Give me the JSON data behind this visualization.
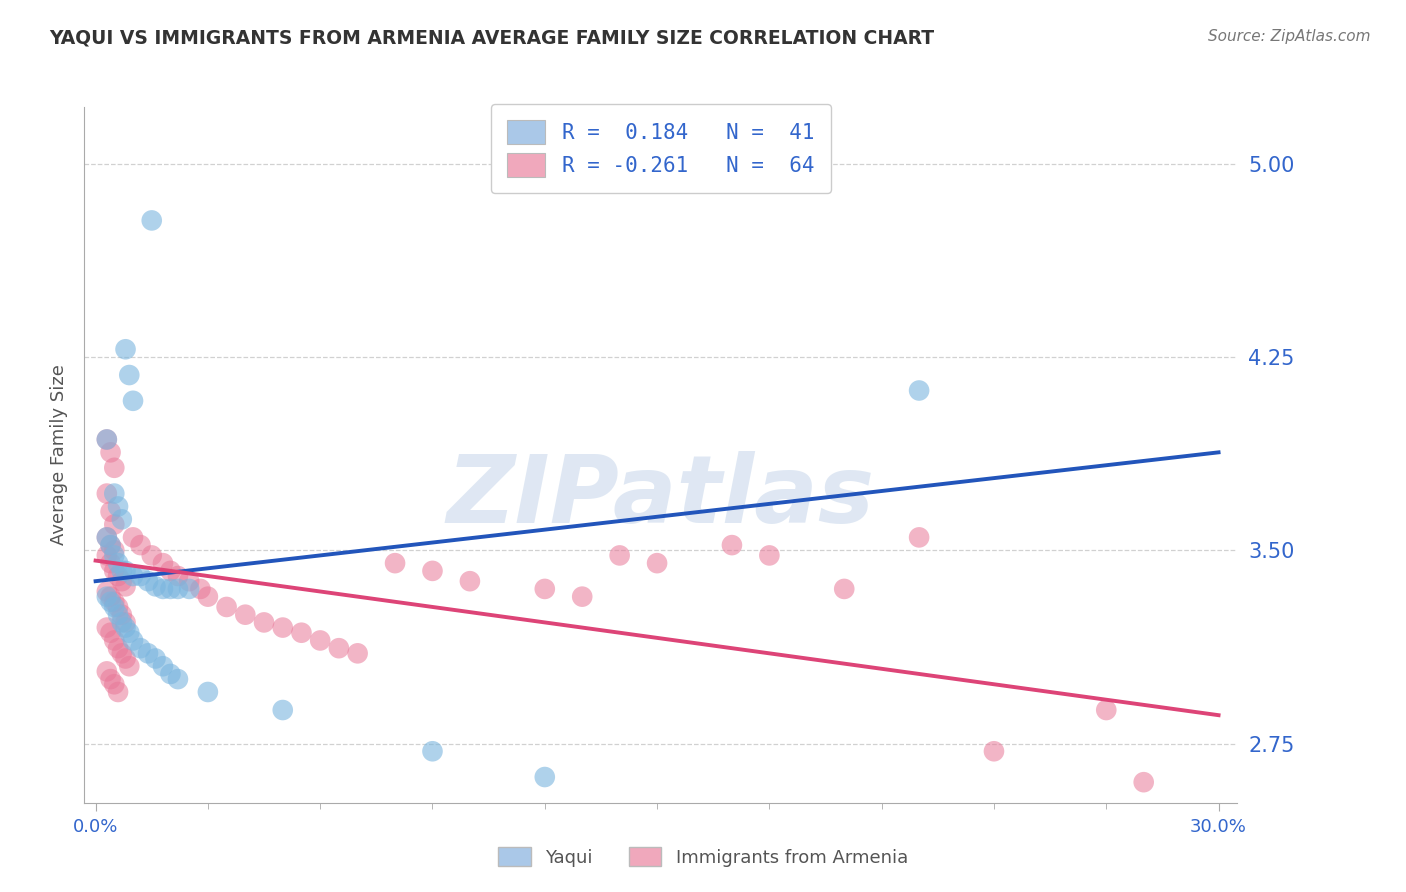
{
  "title": "YAQUI VS IMMIGRANTS FROM ARMENIA AVERAGE FAMILY SIZE CORRELATION CHART",
  "source": "Source: ZipAtlas.com",
  "ylabel": "Average Family Size",
  "yticks": [
    2.75,
    3.5,
    4.25,
    5.0
  ],
  "xlim": [
    -0.003,
    0.305
  ],
  "ylim": [
    2.52,
    5.22
  ],
  "watermark": "ZIPatlas",
  "yaqui_r": "0.184",
  "yaqui_n": "41",
  "armenia_r": "-0.261",
  "armenia_n": "64",
  "yaqui_dot_color": "#7ab5de",
  "armenia_dot_color": "#e87898",
  "yaqui_legend_color": "#aac8e8",
  "armenia_legend_color": "#f0a8bc",
  "yaqui_line_color": "#2255bb",
  "armenia_line_color": "#dd4477",
  "text_color": "#3366cc",
  "title_color": "#333333",
  "source_color": "#777777",
  "grid_color": "#cccccc",
  "background_color": "#ffffff",
  "yaqui_scatter": [
    [
      0.015,
      4.78
    ],
    [
      0.008,
      4.28
    ],
    [
      0.009,
      4.18
    ],
    [
      0.01,
      4.08
    ],
    [
      0.003,
      3.93
    ],
    [
      0.005,
      3.72
    ],
    [
      0.006,
      3.67
    ],
    [
      0.007,
      3.62
    ],
    [
      0.003,
      3.55
    ],
    [
      0.004,
      3.52
    ],
    [
      0.005,
      3.48
    ],
    [
      0.006,
      3.45
    ],
    [
      0.007,
      3.42
    ],
    [
      0.008,
      3.42
    ],
    [
      0.01,
      3.4
    ],
    [
      0.012,
      3.4
    ],
    [
      0.014,
      3.38
    ],
    [
      0.016,
      3.36
    ],
    [
      0.018,
      3.35
    ],
    [
      0.02,
      3.35
    ],
    [
      0.022,
      3.35
    ],
    [
      0.025,
      3.35
    ],
    [
      0.003,
      3.32
    ],
    [
      0.004,
      3.3
    ],
    [
      0.005,
      3.28
    ],
    [
      0.006,
      3.25
    ],
    [
      0.007,
      3.22
    ],
    [
      0.008,
      3.2
    ],
    [
      0.009,
      3.18
    ],
    [
      0.01,
      3.15
    ],
    [
      0.012,
      3.12
    ],
    [
      0.014,
      3.1
    ],
    [
      0.016,
      3.08
    ],
    [
      0.018,
      3.05
    ],
    [
      0.02,
      3.02
    ],
    [
      0.022,
      3.0
    ],
    [
      0.03,
      2.95
    ],
    [
      0.05,
      2.88
    ],
    [
      0.22,
      4.12
    ],
    [
      0.09,
      2.72
    ],
    [
      0.12,
      2.62
    ]
  ],
  "armenia_scatter": [
    [
      0.003,
      3.93
    ],
    [
      0.004,
      3.88
    ],
    [
      0.005,
      3.82
    ],
    [
      0.003,
      3.72
    ],
    [
      0.004,
      3.65
    ],
    [
      0.005,
      3.6
    ],
    [
      0.003,
      3.55
    ],
    [
      0.004,
      3.52
    ],
    [
      0.005,
      3.5
    ],
    [
      0.003,
      3.48
    ],
    [
      0.004,
      3.45
    ],
    [
      0.005,
      3.42
    ],
    [
      0.006,
      3.4
    ],
    [
      0.007,
      3.38
    ],
    [
      0.008,
      3.36
    ],
    [
      0.003,
      3.34
    ],
    [
      0.004,
      3.32
    ],
    [
      0.005,
      3.3
    ],
    [
      0.006,
      3.28
    ],
    [
      0.007,
      3.25
    ],
    [
      0.008,
      3.22
    ],
    [
      0.003,
      3.2
    ],
    [
      0.004,
      3.18
    ],
    [
      0.005,
      3.15
    ],
    [
      0.006,
      3.12
    ],
    [
      0.007,
      3.1
    ],
    [
      0.008,
      3.08
    ],
    [
      0.009,
      3.05
    ],
    [
      0.003,
      3.03
    ],
    [
      0.004,
      3.0
    ],
    [
      0.005,
      2.98
    ],
    [
      0.006,
      2.95
    ],
    [
      0.01,
      3.55
    ],
    [
      0.012,
      3.52
    ],
    [
      0.015,
      3.48
    ],
    [
      0.018,
      3.45
    ],
    [
      0.02,
      3.42
    ],
    [
      0.022,
      3.4
    ],
    [
      0.025,
      3.38
    ],
    [
      0.028,
      3.35
    ],
    [
      0.03,
      3.32
    ],
    [
      0.035,
      3.28
    ],
    [
      0.04,
      3.25
    ],
    [
      0.045,
      3.22
    ],
    [
      0.05,
      3.2
    ],
    [
      0.055,
      3.18
    ],
    [
      0.06,
      3.15
    ],
    [
      0.065,
      3.12
    ],
    [
      0.07,
      3.1
    ],
    [
      0.08,
      3.45
    ],
    [
      0.09,
      3.42
    ],
    [
      0.1,
      3.38
    ],
    [
      0.12,
      3.35
    ],
    [
      0.13,
      3.32
    ],
    [
      0.14,
      3.48
    ],
    [
      0.15,
      3.45
    ],
    [
      0.17,
      3.52
    ],
    [
      0.18,
      3.48
    ],
    [
      0.2,
      3.35
    ],
    [
      0.22,
      3.55
    ],
    [
      0.24,
      2.72
    ],
    [
      0.27,
      2.88
    ],
    [
      0.28,
      2.6
    ]
  ],
  "yaqui_line": [
    0.0,
    3.38,
    0.3,
    3.88
  ],
  "armenia_line": [
    0.0,
    3.46,
    0.3,
    2.86
  ]
}
